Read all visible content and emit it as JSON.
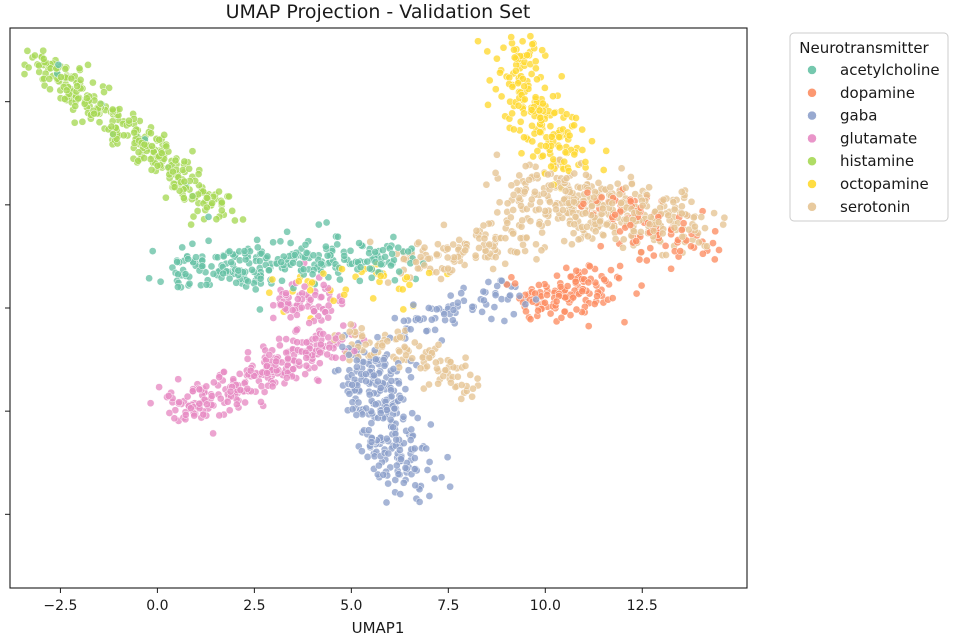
{
  "chart_data": {
    "type": "scatter",
    "title": "UMAP Projection - Validation Set",
    "xlabel": "UMAP1",
    "ylabel": "",
    "xlim": [
      -3.8,
      15.2
    ],
    "ylim": [
      -5.5,
      13.5
    ],
    "xticks": [
      -2.5,
      0.0,
      2.5,
      5.0,
      7.5,
      10.0,
      12.5
    ],
    "xtick_labels": [
      "−2.5",
      "0.0",
      "2.5",
      "5.0",
      "7.5",
      "10.0",
      "12.5"
    ],
    "yticks": [
      -3.0,
      0.5,
      4.0,
      7.5,
      11.0
    ],
    "ytick_labels": [
      "",
      "",
      "",
      "",
      ""
    ],
    "grid": false,
    "legend": {
      "title": "Neurotransmitter",
      "placement": "outside-upper-right"
    },
    "series": [
      {
        "name": "acetylcholine",
        "color": "#66c2a5",
        "clusters": [
          {
            "path": [
              [
                0.3,
                5.2
              ],
              [
                2.0,
                5.4
              ],
              [
                3.5,
                5.6
              ],
              [
                5.0,
                5.7
              ],
              [
                6.3,
                5.8
              ]
            ],
            "spread": 0.4,
            "n": 260
          },
          {
            "path": [
              [
                -3.0,
                12.2
              ],
              [
                0.5,
                8.6
              ],
              [
                1.8,
                6.4
              ]
            ],
            "spread": 0.15,
            "n": 10
          }
        ]
      },
      {
        "name": "dopamine",
        "color": "#fc8d62",
        "clusters": [
          {
            "path": [
              [
                9.5,
                4.1
              ],
              [
                10.5,
                4.4
              ],
              [
                11.5,
                4.7
              ]
            ],
            "spread": 0.45,
            "n": 130
          },
          {
            "path": [
              [
                11.5,
                7.6
              ],
              [
                12.6,
                6.6
              ],
              [
                13.9,
                6.1
              ]
            ],
            "spread": 0.45,
            "n": 90
          }
        ]
      },
      {
        "name": "gaba",
        "color": "#8da0cb",
        "clusters": [
          {
            "path": [
              [
                5.3,
                2.5
              ],
              [
                5.9,
                0.5
              ],
              [
                6.4,
                -1.9
              ]
            ],
            "spread": 0.45,
            "n": 280
          },
          {
            "path": [
              [
                6.5,
                3.3
              ],
              [
                7.8,
                4.0
              ],
              [
                9.2,
                4.5
              ]
            ],
            "spread": 0.3,
            "n": 70
          }
        ]
      },
      {
        "name": "glutamate",
        "color": "#e78ac3",
        "clusters": [
          {
            "path": [
              [
                0.4,
                0.5
              ],
              [
                2.0,
                1.3
              ],
              [
                3.6,
                2.3
              ],
              [
                4.8,
                2.9
              ]
            ],
            "spread": 0.35,
            "n": 270
          },
          {
            "path": [
              [
                3.2,
                4.2
              ],
              [
                4.6,
                4.2
              ]
            ],
            "spread": 0.35,
            "n": 70
          }
        ]
      },
      {
        "name": "histamine",
        "color": "#a6d854",
        "clusters": [
          {
            "path": [
              [
                -3.0,
                12.3
              ],
              [
                -1.5,
                10.8
              ],
              [
                0.5,
                8.6
              ],
              [
                1.6,
                7.2
              ]
            ],
            "spread": 0.3,
            "n": 320
          }
        ]
      },
      {
        "name": "octopamine",
        "color": "#ffd92f",
        "clusters": [
          {
            "path": [
              [
                9.2,
                13.0
              ],
              [
                9.4,
                11.5
              ],
              [
                9.9,
                10.2
              ],
              [
                10.7,
                8.8
              ]
            ],
            "spread": 0.4,
            "n": 200
          },
          {
            "path": [
              [
                3.0,
                4.5
              ],
              [
                5.2,
                4.8
              ],
              [
                7.0,
                5.0
              ]
            ],
            "spread": 0.4,
            "n": 40
          }
        ]
      },
      {
        "name": "serotonin",
        "color": "#e5c494",
        "clusters": [
          {
            "path": [
              [
                9.2,
                8.0
              ],
              [
                10.8,
                7.5
              ],
              [
                12.2,
                7.2
              ],
              [
                13.6,
                6.8
              ]
            ],
            "spread": 0.55,
            "n": 380
          },
          {
            "path": [
              [
                6.5,
                5.6
              ],
              [
                8.0,
                5.8
              ],
              [
                9.3,
                6.2
              ]
            ],
            "spread": 0.4,
            "n": 120
          },
          {
            "path": [
              [
                4.8,
                3.0
              ],
              [
                6.5,
                2.7
              ],
              [
                8.2,
                1.1
              ]
            ],
            "spread": 0.3,
            "n": 110
          }
        ]
      }
    ]
  }
}
